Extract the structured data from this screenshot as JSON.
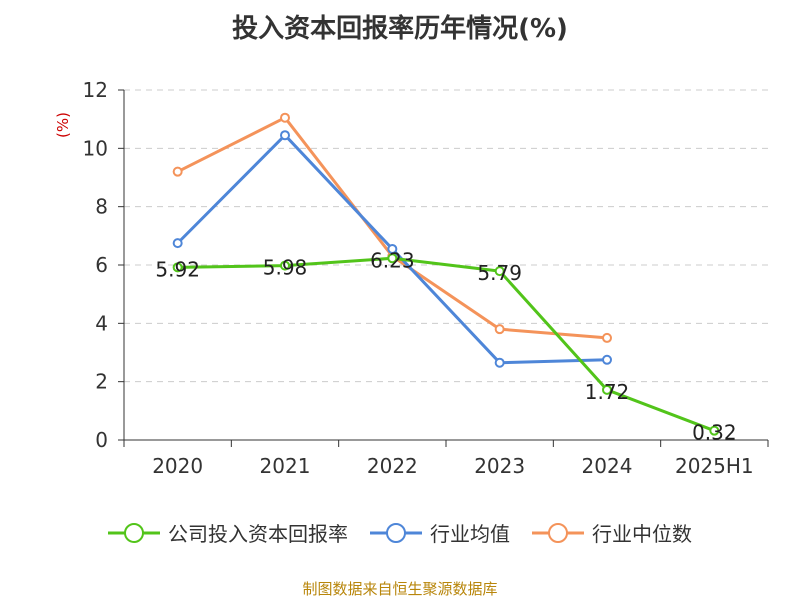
{
  "chart_data": {
    "type": "line",
    "title": "投入资本回报率历年情况(%)",
    "ylabel": "(%)",
    "categories": [
      "2020",
      "2021",
      "2022",
      "2023",
      "2024",
      "2025H1"
    ],
    "ylim": [
      0,
      12
    ],
    "yticks": [
      "0",
      "2",
      "4",
      "6",
      "8",
      "10",
      "12"
    ],
    "grid": true,
    "legend_position": "bottom",
    "series": [
      {
        "name": "公司投入资本回报率",
        "color": "#52c41a",
        "values": [
          5.92,
          5.98,
          6.23,
          5.79,
          1.72,
          0.32
        ],
        "labels": [
          "5.92",
          "5.98",
          "6.23",
          "5.79",
          "1.72",
          "0.32"
        ]
      },
      {
        "name": "行业均值",
        "color": "#4e86d8",
        "values": [
          6.75,
          10.45,
          6.55,
          2.65,
          2.75,
          null
        ]
      },
      {
        "name": "行业中位数",
        "color": "#f4935a",
        "values": [
          9.2,
          11.05,
          6.3,
          3.8,
          3.5,
          null
        ]
      }
    ]
  },
  "source_note": "制图数据来自恒生聚源数据库"
}
